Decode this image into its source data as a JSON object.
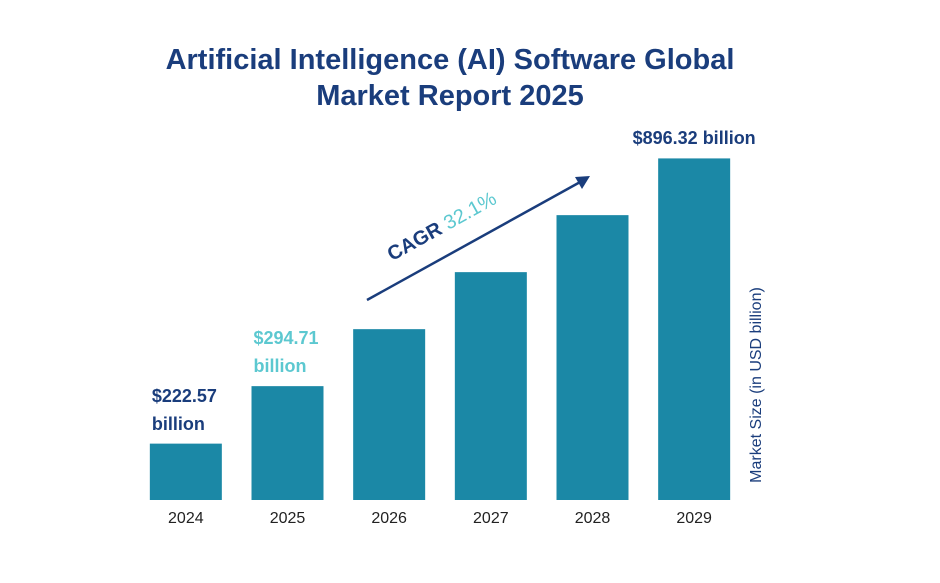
{
  "chart_data": {
    "type": "bar",
    "title": "Artificial Intelligence (AI) Software Global Market Report 2025",
    "categories": [
      "2024",
      "2025",
      "2026",
      "2027",
      "2028",
      "2029"
    ],
    "values": [
      222.57,
      294.71,
      389.3,
      514.3,
      679.4,
      896.32
    ],
    "value_labels": [
      "$222.57 billion",
      "$294.71 billion",
      null,
      null,
      null,
      "$896.32 billion"
    ],
    "value_label_colors": [
      "#1a3d7c",
      "#5cc8d0",
      null,
      null,
      null,
      "#1a3d7c"
    ],
    "color": "#1b88a6",
    "ylabel": "Market Size (in USD billion)",
    "log_scale": true,
    "ylim": [
      169,
      1000
    ],
    "grid": false,
    "annotation": {
      "text": "CAGR",
      "value_text": "32.1%",
      "color": "#1a3d7c",
      "value_color": "#5cc8d0"
    }
  }
}
